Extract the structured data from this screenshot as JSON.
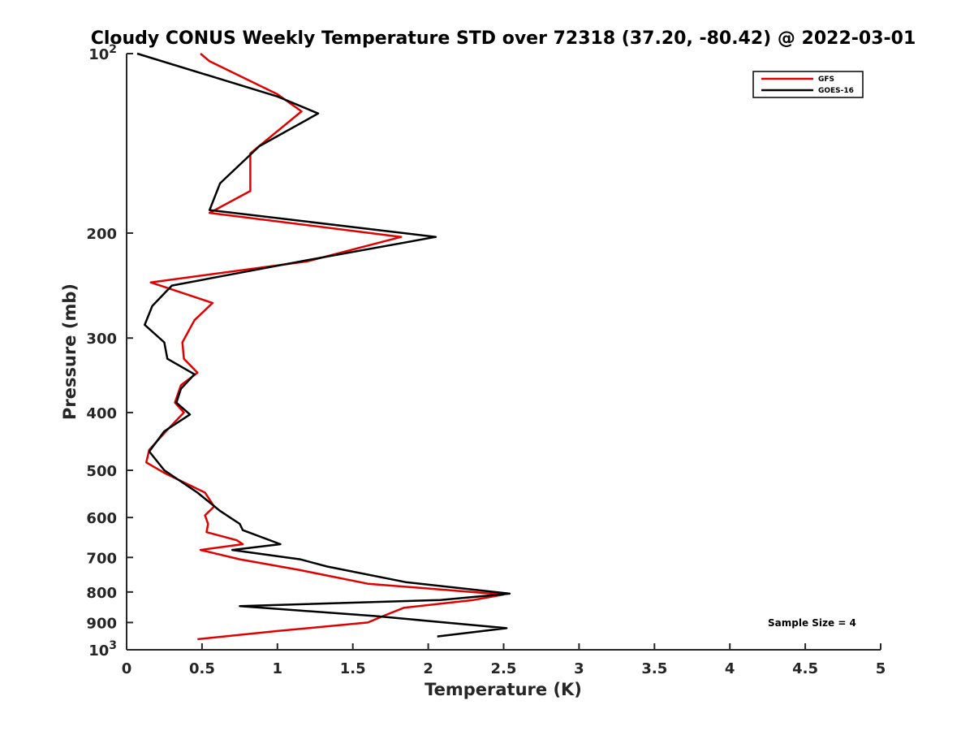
{
  "chart_data": {
    "type": "line",
    "title": "Cloudy CONUS Weekly Temperature STD over 72318 (37.20, -80.42) @ 2022-03-01",
    "xlabel": "Temperature (K)",
    "ylabel": "Pressure (mb)",
    "xlim": [
      0,
      5
    ],
    "ylim": [
      100,
      1000
    ],
    "y_scale": "log",
    "y_reversed": true,
    "x_ticks": [
      0,
      0.5,
      1,
      1.5,
      2,
      2.5,
      3,
      3.5,
      4,
      4.5,
      5
    ],
    "x_tick_labels": [
      "0",
      "0.5",
      "1",
      "1.5",
      "2",
      "2.5",
      "3",
      "3.5",
      "4",
      "4.5",
      "5"
    ],
    "y_ticks": [
      100,
      200,
      300,
      400,
      500,
      600,
      700,
      800,
      900,
      1000
    ],
    "y_tick_labels": [
      {
        "base": "10",
        "exp": "2"
      },
      {
        "base": "200",
        "exp": ""
      },
      {
        "base": "300",
        "exp": ""
      },
      {
        "base": "400",
        "exp": ""
      },
      {
        "base": "500",
        "exp": ""
      },
      {
        "base": "600",
        "exp": ""
      },
      {
        "base": "700",
        "exp": ""
      },
      {
        "base": "800",
        "exp": ""
      },
      {
        "base": "900",
        "exp": ""
      },
      {
        "base": "10",
        "exp": "3"
      }
    ],
    "grid": false,
    "legend_position": "top-right",
    "annotation": "Sample Size = 4",
    "series": [
      {
        "name": "GFS",
        "color": "#e00000",
        "points": [
          [
            0.49,
            100
          ],
          [
            0.55,
            103
          ],
          [
            1.0,
            117
          ],
          [
            1.16,
            125
          ],
          [
            0.82,
            147
          ],
          [
            0.82,
            170
          ],
          [
            0.55,
            185
          ],
          [
            1.82,
            203
          ],
          [
            1.2,
            223
          ],
          [
            0.16,
            242
          ],
          [
            0.57,
            262
          ],
          [
            0.45,
            280
          ],
          [
            0.37,
            305
          ],
          [
            0.38,
            325
          ],
          [
            0.47,
            343
          ],
          [
            0.36,
            360
          ],
          [
            0.32,
            385
          ],
          [
            0.38,
            400
          ],
          [
            0.28,
            425
          ],
          [
            0.15,
            462
          ],
          [
            0.13,
            485
          ],
          [
            0.25,
            505
          ],
          [
            0.52,
            545
          ],
          [
            0.58,
            575
          ],
          [
            0.52,
            595
          ],
          [
            0.54,
            615
          ],
          [
            0.53,
            635
          ],
          [
            0.73,
            655
          ],
          [
            0.77,
            665
          ],
          [
            0.49,
            680
          ],
          [
            0.75,
            705
          ],
          [
            1.15,
            735
          ],
          [
            1.6,
            775
          ],
          [
            2.5,
            808
          ],
          [
            2.3,
            825
          ],
          [
            1.84,
            850
          ],
          [
            1.7,
            878
          ],
          [
            1.6,
            900
          ],
          [
            1.0,
            930
          ],
          [
            0.47,
            960
          ]
        ]
      },
      {
        "name": "GOES-16",
        "color": "#000000",
        "points": [
          [
            0.07,
            100
          ],
          [
            1.0,
            118
          ],
          [
            1.27,
            126
          ],
          [
            0.88,
            143
          ],
          [
            0.62,
            165
          ],
          [
            0.55,
            183
          ],
          [
            2.05,
            203
          ],
          [
            1.2,
            222
          ],
          [
            0.3,
            245
          ],
          [
            0.17,
            265
          ],
          [
            0.12,
            285
          ],
          [
            0.25,
            305
          ],
          [
            0.27,
            325
          ],
          [
            0.45,
            345
          ],
          [
            0.36,
            365
          ],
          [
            0.33,
            385
          ],
          [
            0.42,
            403
          ],
          [
            0.25,
            430
          ],
          [
            0.15,
            465
          ],
          [
            0.25,
            500
          ],
          [
            0.47,
            545
          ],
          [
            0.62,
            585
          ],
          [
            0.75,
            615
          ],
          [
            0.77,
            630
          ],
          [
            1.02,
            665
          ],
          [
            0.7,
            680
          ],
          [
            1.15,
            705
          ],
          [
            1.33,
            725
          ],
          [
            1.85,
            770
          ],
          [
            2.54,
            805
          ],
          [
            2.08,
            825
          ],
          [
            0.75,
            845
          ],
          [
            1.65,
            878
          ],
          [
            2.52,
            920
          ],
          [
            2.06,
            950
          ]
        ]
      }
    ]
  }
}
